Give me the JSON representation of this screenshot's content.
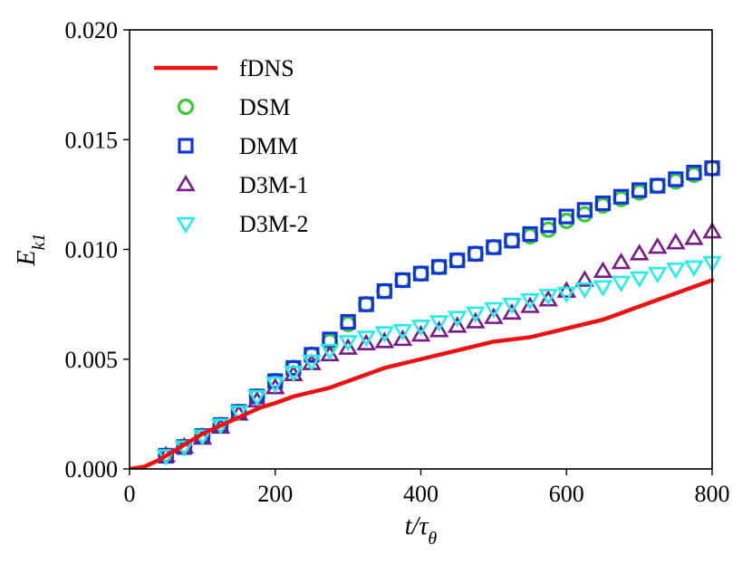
{
  "chart_data": {
    "type": "line",
    "title": "",
    "xlabel": "t/τθ",
    "ylabel": "Ek1",
    "xlim": [
      0,
      800
    ],
    "ylim": [
      0,
      0.02
    ],
    "xticks": [
      "0",
      "200",
      "400",
      "600",
      "800"
    ],
    "yticks": [
      "0.000",
      "0.005",
      "0.010",
      "0.015",
      "0.020"
    ],
    "legend_position": "top-left",
    "series": [
      {
        "name": "fDNS",
        "style": "line",
        "color": "#ee1111",
        "x": [
          0,
          20,
          40,
          60,
          80,
          100,
          120,
          140,
          160,
          180,
          200,
          225,
          250,
          275,
          300,
          325,
          350,
          375,
          400,
          425,
          450,
          475,
          500,
          525,
          550,
          575,
          600,
          625,
          650,
          675,
          700,
          725,
          750,
          775,
          800
        ],
        "y": [
          0.0,
          0.0001,
          0.0004,
          0.0008,
          0.0012,
          0.0016,
          0.0019,
          0.0022,
          0.0025,
          0.0028,
          0.003,
          0.0033,
          0.0035,
          0.0037,
          0.004,
          0.0043,
          0.0046,
          0.0048,
          0.005,
          0.0052,
          0.0054,
          0.0056,
          0.0058,
          0.0059,
          0.006,
          0.0062,
          0.0064,
          0.0066,
          0.0068,
          0.0071,
          0.0074,
          0.0077,
          0.008,
          0.0083,
          0.0086
        ]
      },
      {
        "name": "DSM",
        "style": "marker",
        "marker": "circle",
        "color": "#33cc33",
        "x": [
          50,
          75,
          100,
          125,
          150,
          175,
          200,
          225,
          250,
          275,
          300,
          325,
          350,
          375,
          400,
          425,
          450,
          475,
          500,
          525,
          550,
          575,
          600,
          625,
          650,
          675,
          700,
          725,
          750,
          775,
          800
        ],
        "y": [
          0.0006,
          0.001,
          0.0015,
          0.002,
          0.0026,
          0.0033,
          0.004,
          0.0046,
          0.0052,
          0.0058,
          0.0066,
          0.0075,
          0.0081,
          0.0086,
          0.0089,
          0.0092,
          0.0095,
          0.0098,
          0.0101,
          0.0104,
          0.0106,
          0.0109,
          0.0113,
          0.0116,
          0.012,
          0.0123,
          0.0126,
          0.0129,
          0.0131,
          0.0134,
          0.0137
        ]
      },
      {
        "name": "DMM",
        "style": "marker",
        "marker": "square",
        "color": "#1133dd",
        "x": [
          50,
          75,
          100,
          125,
          150,
          175,
          200,
          225,
          250,
          275,
          300,
          325,
          350,
          375,
          400,
          425,
          450,
          475,
          500,
          525,
          550,
          575,
          600,
          625,
          650,
          675,
          700,
          725,
          750,
          775,
          800
        ],
        "y": [
          0.0006,
          0.001,
          0.0015,
          0.002,
          0.0026,
          0.0033,
          0.004,
          0.0046,
          0.0052,
          0.0059,
          0.0067,
          0.0075,
          0.0081,
          0.0086,
          0.0089,
          0.0092,
          0.0095,
          0.0098,
          0.0101,
          0.0104,
          0.0107,
          0.0111,
          0.0115,
          0.0118,
          0.0121,
          0.0124,
          0.0127,
          0.0129,
          0.0132,
          0.0135,
          0.0137
        ]
      },
      {
        "name": "D3M-1",
        "style": "marker",
        "marker": "triangle-up",
        "color": "#7a1a8a",
        "x": [
          50,
          75,
          100,
          125,
          150,
          175,
          200,
          225,
          250,
          275,
          300,
          325,
          350,
          375,
          400,
          425,
          450,
          475,
          500,
          525,
          550,
          575,
          600,
          625,
          650,
          675,
          700,
          725,
          750,
          775,
          800
        ],
        "y": [
          0.0006,
          0.001,
          0.0014,
          0.0019,
          0.0025,
          0.0031,
          0.0037,
          0.0043,
          0.0048,
          0.0052,
          0.0055,
          0.0057,
          0.0058,
          0.0059,
          0.0061,
          0.0063,
          0.0065,
          0.0067,
          0.0069,
          0.0071,
          0.0074,
          0.0077,
          0.0081,
          0.0086,
          0.009,
          0.0094,
          0.0098,
          0.0101,
          0.0103,
          0.0105,
          0.0108
        ]
      },
      {
        "name": "D3M-2",
        "style": "marker",
        "marker": "triangle-down",
        "color": "#22eeee",
        "x": [
          50,
          75,
          100,
          125,
          150,
          175,
          200,
          225,
          250,
          275,
          300,
          325,
          350,
          375,
          400,
          425,
          450,
          475,
          500,
          525,
          550,
          575,
          600,
          625,
          650,
          675,
          700,
          725,
          750,
          775,
          800
        ],
        "y": [
          0.0006,
          0.001,
          0.0015,
          0.002,
          0.0026,
          0.0033,
          0.0039,
          0.0044,
          0.0049,
          0.0054,
          0.0058,
          0.006,
          0.0062,
          0.0063,
          0.0065,
          0.0067,
          0.0069,
          0.0071,
          0.0073,
          0.0075,
          0.0077,
          0.0079,
          0.008,
          0.0082,
          0.0083,
          0.0085,
          0.0087,
          0.0089,
          0.0091,
          0.0092,
          0.0094
        ]
      }
    ]
  }
}
